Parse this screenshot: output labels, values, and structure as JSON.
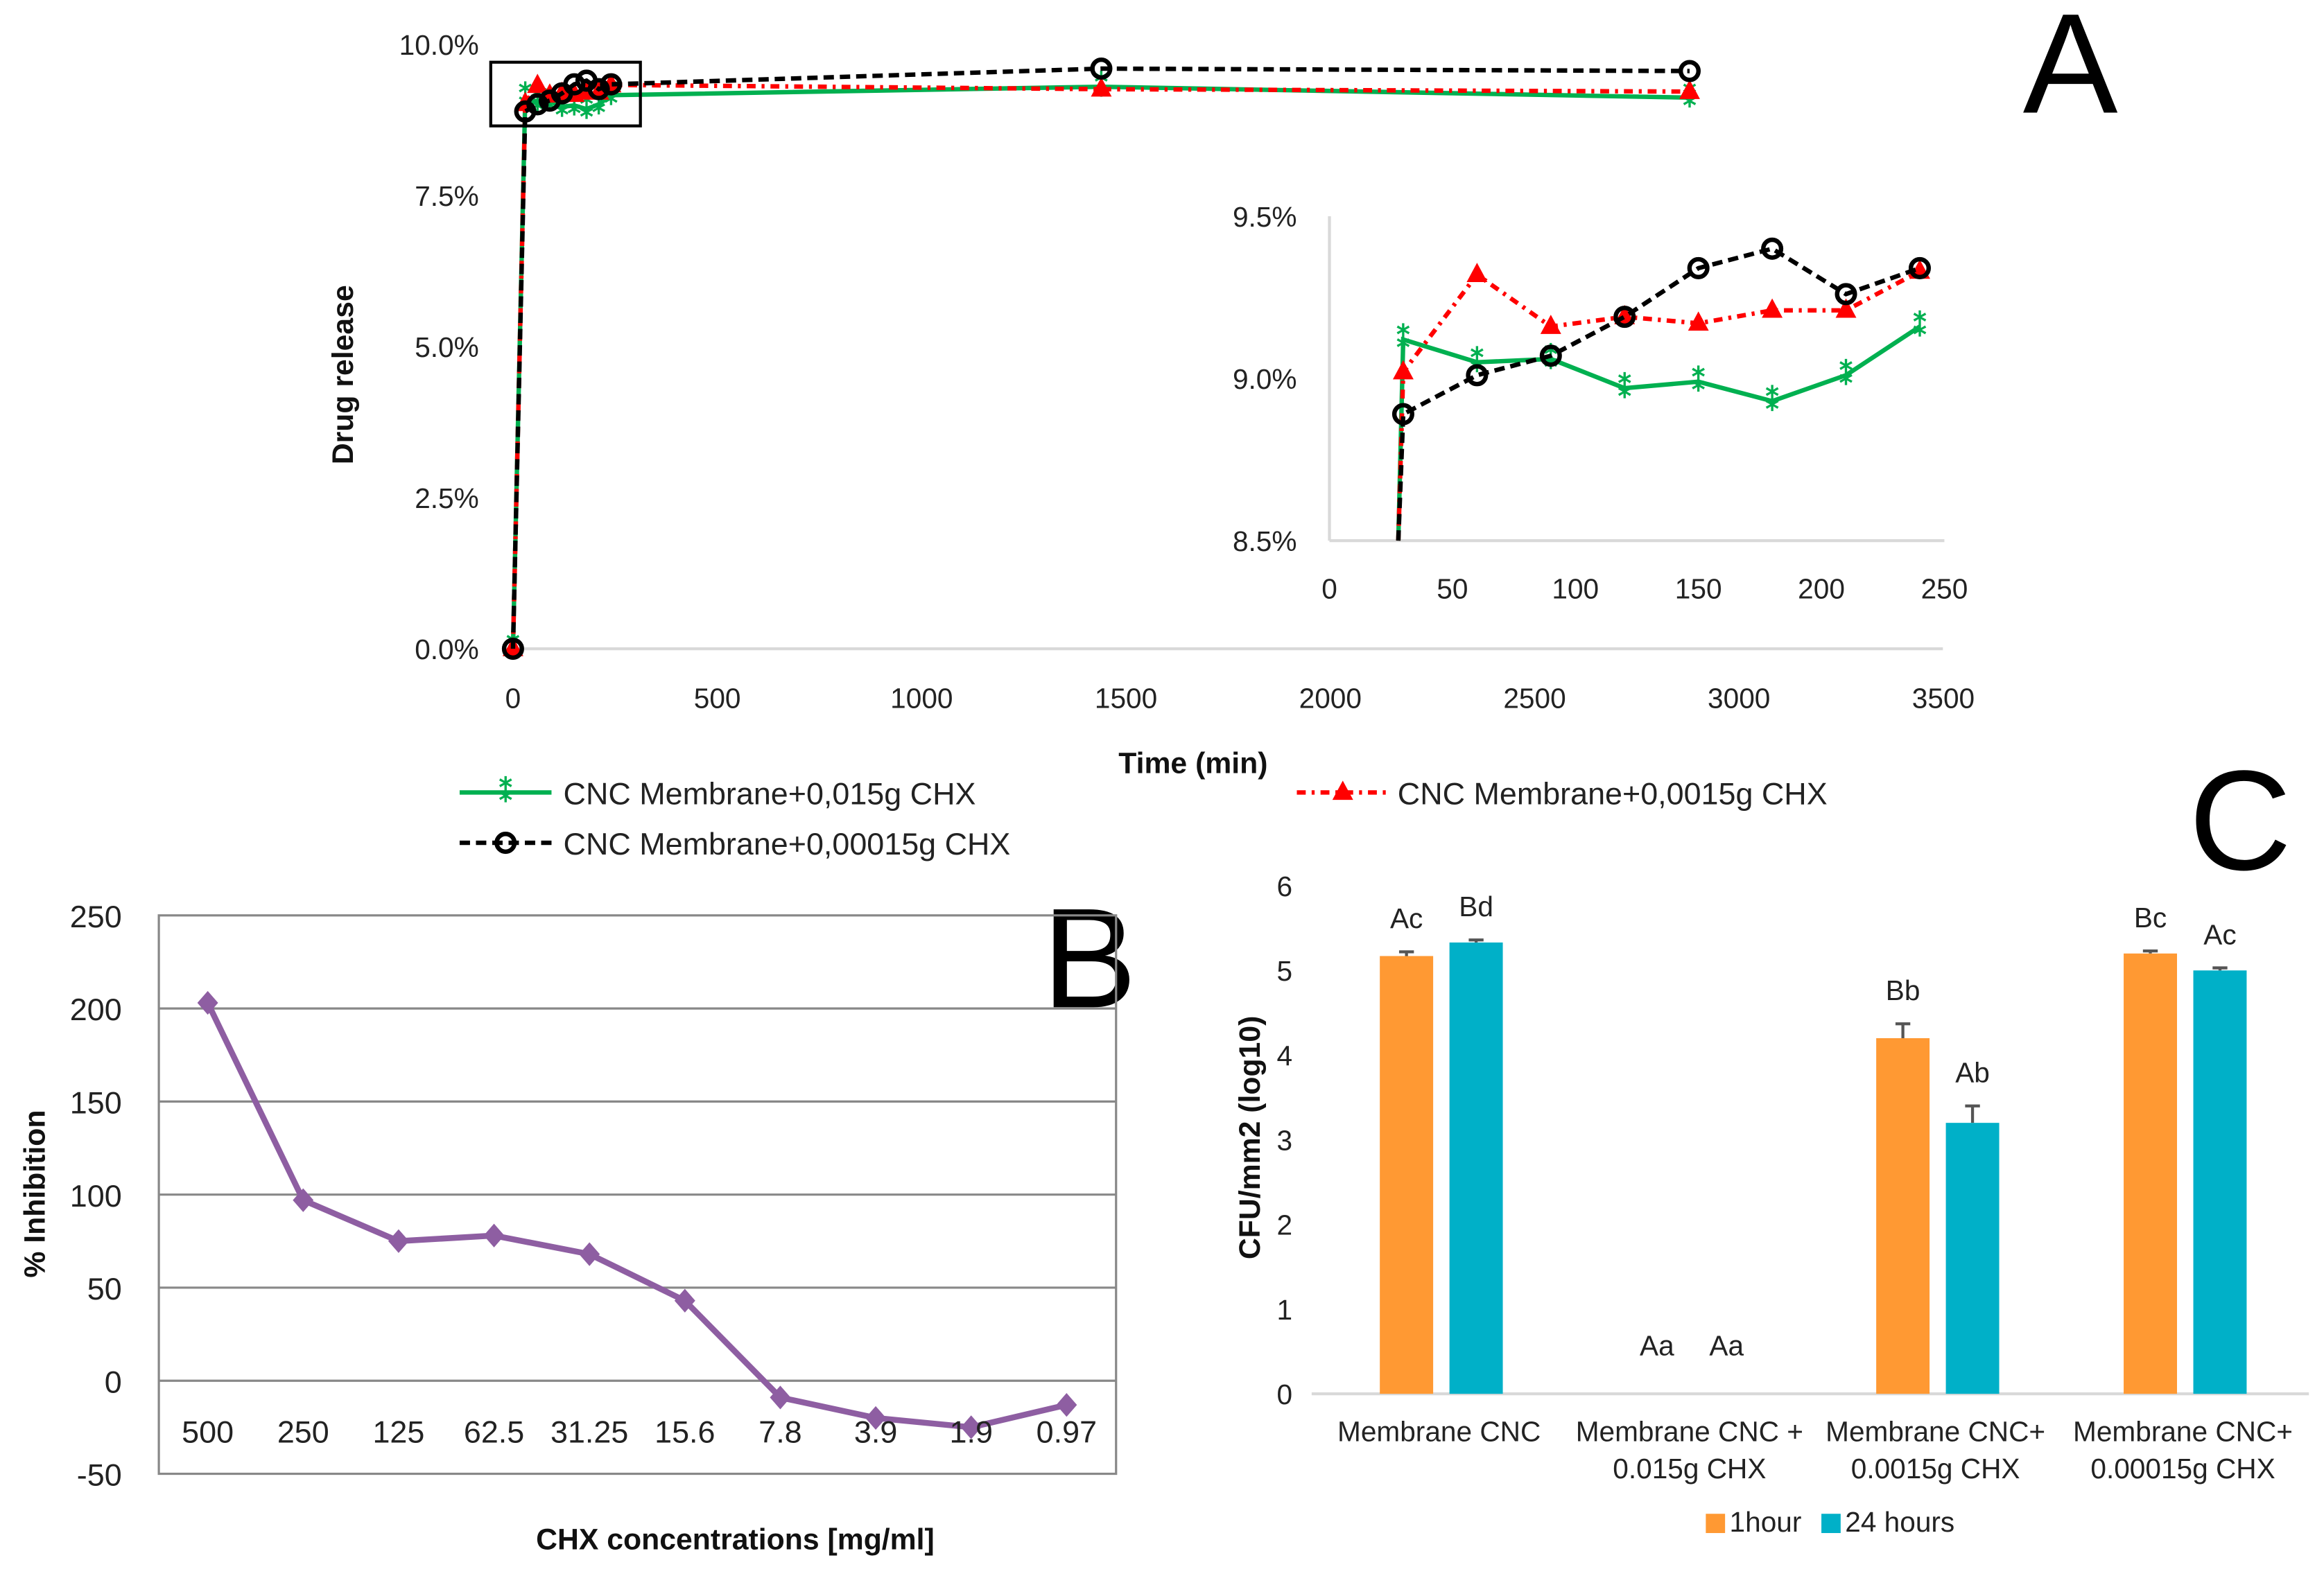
{
  "panel_labels": {
    "a": "A",
    "b": "B",
    "c": "C"
  },
  "chart_data": [
    {
      "type": "line",
      "panel": "A",
      "xlabel": "Time (min)",
      "ylabel": "Drug release",
      "xlim": [
        0,
        3500
      ],
      "ylim": [
        0,
        10
      ],
      "xticks": [
        "0",
        "500",
        "1000",
        "1500",
        "2000",
        "2500",
        "3000",
        "3500"
      ],
      "yticks": [
        "0.0%",
        "2.5%",
        "5.0%",
        "7.5%",
        "10.0%"
      ],
      "legend": [
        "CNC Membrane+0,015g CHX",
        "CNC Membrane+0,0015g CHX",
        "CNC Membrane+0,00015g CHX"
      ],
      "colors": [
        "#00b050",
        "#ff0000",
        "#000000"
      ],
      "series": [
        {
          "name": "CNC Membrane+0,015g CHX",
          "x": [
            0,
            30,
            60,
            90,
            120,
            150,
            180,
            210,
            240,
            1440,
            2880
          ],
          "y": [
            0,
            9.12,
            9.05,
            9.06,
            8.97,
            8.99,
            8.93,
            9.01,
            9.16,
            9.3,
            9.12
          ]
        },
        {
          "name": "CNC Membrane+0,0015g CHX",
          "x": [
            0,
            30,
            60,
            90,
            120,
            150,
            180,
            210,
            240,
            1440,
            2880
          ],
          "y": [
            0,
            9.02,
            9.32,
            9.16,
            9.19,
            9.17,
            9.21,
            9.21,
            9.33,
            9.26,
            9.22
          ]
        },
        {
          "name": "CNC Membrane+0,00015g CHX",
          "x": [
            0,
            30,
            60,
            90,
            120,
            150,
            180,
            210,
            240,
            1440,
            2880
          ],
          "y": [
            0,
            8.89,
            9.01,
            9.07,
            9.19,
            9.34,
            9.4,
            9.26,
            9.34,
            9.6,
            9.56
          ]
        }
      ],
      "inset": {
        "xlim": [
          0,
          250
        ],
        "ylim": [
          8.5,
          9.5
        ],
        "xticks": [
          "0",
          "50",
          "100",
          "150",
          "200",
          "250"
        ],
        "yticks": [
          "8.5%",
          "9.0%",
          "9.5%"
        ]
      }
    },
    {
      "type": "line",
      "panel": "B",
      "xlabel": "CHX concentrations  [mg/ml]",
      "ylabel": "% Inhibition",
      "ylim": [
        -50,
        250
      ],
      "categories": [
        "500",
        "250",
        "125",
        "62.5",
        "31.25",
        "15.6",
        "7.8",
        "3.9",
        "1.9",
        "0.97"
      ],
      "values": [
        203,
        97,
        75,
        78,
        68,
        43,
        -9,
        -20,
        -25,
        -13
      ],
      "yticks": [
        "-50",
        "0",
        "50",
        "100",
        "150",
        "200",
        "250"
      ],
      "color": "#8e5ea2",
      "grid": true
    },
    {
      "type": "bar",
      "panel": "C",
      "ylabel": "CFU/mm2 (log10)",
      "ylim": [
        0,
        6
      ],
      "categories": [
        [
          "Membrane CNC"
        ],
        [
          "Membrane CNC +",
          "0.015g CHX"
        ],
        [
          "Membrane CNC+",
          "0.0015g CHX"
        ],
        [
          "Membrane CNC+",
          "0.00015g CHX"
        ]
      ],
      "yticks": [
        "0",
        "1",
        "2",
        "3",
        "4",
        "5",
        "6"
      ],
      "series": [
        {
          "name": "1hour",
          "color": "#ff9933",
          "values": [
            5.17,
            0,
            4.2,
            5.2
          ],
          "errors": [
            0.05,
            0,
            0.17,
            0.03
          ],
          "labels": [
            "Ac",
            "Aa",
            "Bb",
            "Bc"
          ]
        },
        {
          "name": "24 hours",
          "color": "#00b0c8",
          "values": [
            5.33,
            0,
            3.2,
            5.0
          ],
          "errors": [
            0.03,
            0,
            0.2,
            0.03
          ],
          "labels": [
            "Bd",
            "Aa",
            "Ab",
            "Ac"
          ]
        }
      ]
    }
  ]
}
